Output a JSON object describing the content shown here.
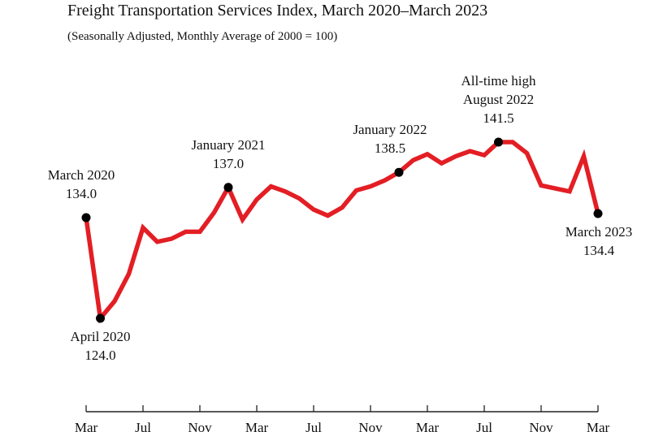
{
  "chart_data": {
    "type": "line",
    "title": "Freight Transportation Services Index, March 2020–March 2023",
    "subtitle": "(Seasonally Adjusted, Monthly Average of 2000 = 100)",
    "xlabel": "",
    "ylabel": "",
    "x_tick_labels": [
      "Mar",
      "Jul",
      "Nov",
      "Mar",
      "Jul",
      "Nov",
      "Mar",
      "Jul",
      "Nov",
      "Mar"
    ],
    "x": [
      "2020-03",
      "2020-04",
      "2020-05",
      "2020-06",
      "2020-07",
      "2020-08",
      "2020-09",
      "2020-10",
      "2020-11",
      "2020-12",
      "2021-01",
      "2021-02",
      "2021-03",
      "2021-04",
      "2021-05",
      "2021-06",
      "2021-07",
      "2021-08",
      "2021-09",
      "2021-10",
      "2021-11",
      "2021-12",
      "2022-01",
      "2022-02",
      "2022-03",
      "2022-04",
      "2022-05",
      "2022-06",
      "2022-07",
      "2022-08",
      "2022-09",
      "2022-10",
      "2022-11",
      "2022-12",
      "2023-01",
      "2023-02",
      "2023-03"
    ],
    "series": [
      {
        "values": [
          134.0,
          124.0,
          125.7,
          128.4,
          133.0,
          131.6,
          131.9,
          132.6,
          132.6,
          134.5,
          137.0,
          133.8,
          135.8,
          137.1,
          136.6,
          135.9,
          134.8,
          134.2,
          135.0,
          136.7,
          137.1,
          137.7,
          138.5,
          139.7,
          140.3,
          139.4,
          140.1,
          140.6,
          140.2,
          141.5,
          141.5,
          140.4,
          137.2,
          136.9,
          136.6,
          140.1,
          134.4
        ],
        "color": "#e31e24"
      }
    ],
    "annotations": [
      {
        "index": 0,
        "lines": [
          "March 2020",
          "134.0"
        ],
        "place": "above"
      },
      {
        "index": 1,
        "lines": [
          "April 2020",
          "124.0"
        ],
        "place": "below"
      },
      {
        "index": 10,
        "lines": [
          "January 2021",
          "137.0"
        ],
        "place": "above"
      },
      {
        "index": 22,
        "lines": [
          "January 2022",
          "138.5"
        ],
        "place": "above"
      },
      {
        "index": 29,
        "lines": [
          "All-time high",
          "August 2022",
          "141.5"
        ],
        "place": "above"
      },
      {
        "index": 36,
        "lines": [
          "March 2023",
          "134.4"
        ],
        "place": "below"
      }
    ],
    "marker_color": "#000000",
    "grid": false,
    "legend": "none"
  }
}
